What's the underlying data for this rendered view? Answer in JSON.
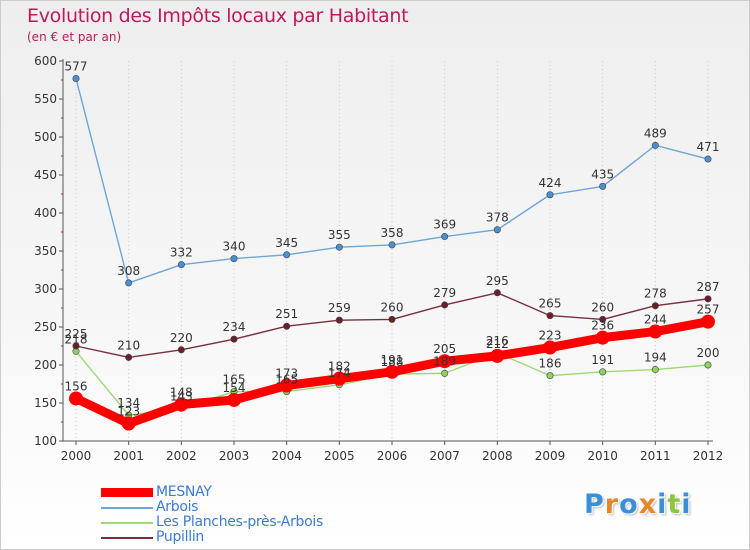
{
  "chart_data": {
    "type": "line",
    "title": "Evolution des Impôts locaux par Habitant",
    "subtitle": "(en € et par an)",
    "xlabel": "",
    "ylabel": "",
    "ylim": [
      100,
      600
    ],
    "y_ticks": [
      100,
      150,
      200,
      250,
      300,
      350,
      400,
      450,
      500,
      550,
      600
    ],
    "categories": [
      "2000",
      "2001",
      "2002",
      "2003",
      "2004",
      "2005",
      "2006",
      "2007",
      "2008",
      "2009",
      "2010",
      "2011",
      "2012"
    ],
    "grid": "x-dotted",
    "series": [
      {
        "name": "MESNAY",
        "values": [
          156,
          123,
          148,
          154,
          173,
          182,
          191,
          205,
          212,
          223,
          236,
          244,
          257
        ],
        "color": "#ff0000",
        "fill": "#ff0000"
      },
      {
        "name": "Arbois",
        "values": [
          577,
          308,
          332,
          340,
          345,
          355,
          358,
          369,
          378,
          424,
          435,
          489,
          471
        ],
        "color": "#6ea6d8",
        "fill": "#4a90d0"
      },
      {
        "name": "Les Planches-près-Arbois",
        "values": [
          218,
          134,
          143,
          165,
          165,
          174,
          188,
          189,
          216,
          186,
          191,
          194,
          200
        ],
        "color": "#9fd875",
        "fill": "#8fd45a"
      },
      {
        "name": "Pupillin",
        "values": [
          225,
          210,
          220,
          234,
          251,
          259,
          260,
          279,
          295,
          265,
          260,
          278,
          287
        ],
        "color": "#7a2f3a",
        "fill": "#6b1f2a"
      }
    ],
    "legend_position": "bottom-left"
  },
  "logo": {
    "text": "Proxiti",
    "letters": [
      "P",
      "r",
      "o",
      "x",
      "i",
      "t",
      "i"
    ],
    "colors": [
      "#3a8fd8",
      "#e8862a",
      "#3a8fd8",
      "#e8862a",
      "#3a8fd8",
      "#8dc63f",
      "#3a8fd8"
    ]
  }
}
